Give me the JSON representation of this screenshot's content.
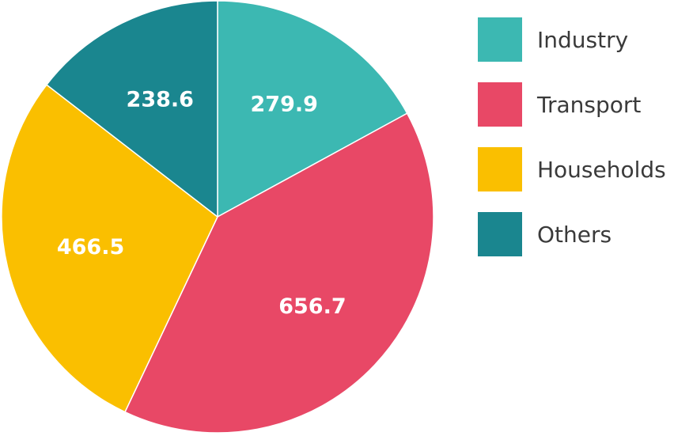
{
  "chart_data": {
    "type": "pie",
    "slices": [
      {
        "label": "Industry",
        "value": 279.9,
        "value_label": "279.9",
        "color": "#3cb8b2"
      },
      {
        "label": "Transport",
        "value": 656.7,
        "value_label": "656.7",
        "color": "#e84866"
      },
      {
        "label": "Households",
        "value": 466.5,
        "value_label": "466.5",
        "color": "#fabf00"
      },
      {
        "label": "Others",
        "value": 238.6,
        "value_label": "238.6",
        "color": "#1a868f"
      }
    ],
    "start_angle": "12 o'clock",
    "direction": "clockwise",
    "legend_position": "right",
    "title": ""
  }
}
